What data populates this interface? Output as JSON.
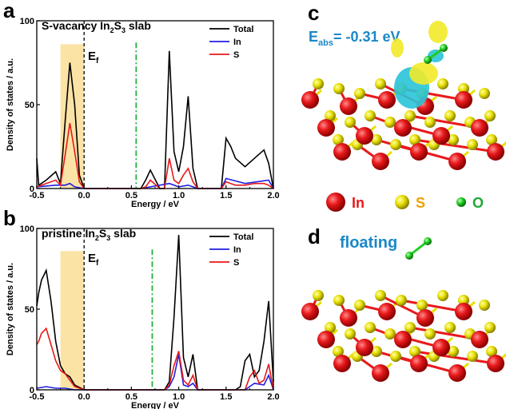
{
  "panels": {
    "a": {
      "letter": "a",
      "title_main": "S-vacancy In",
      "sub1": "2",
      "mid": "S",
      "sub2": "3",
      "tail": " slab",
      "ef_label": "E",
      "ef_sub": "f"
    },
    "b": {
      "letter": "b",
      "title_main": "pristine In",
      "sub1": "2",
      "mid": "S",
      "sub2": "3",
      "tail": " slab",
      "ef_label": "E",
      "ef_sub": "f"
    },
    "c": {
      "letter": "c",
      "eabs_main": "E",
      "eabs_sub": "abs",
      "eabs_value": "= -0.31 eV"
    },
    "d": {
      "letter": "d",
      "label": "floating"
    }
  },
  "species_legend": [
    {
      "label": "In",
      "color": "#e8191b"
    },
    {
      "label": "S",
      "color": "#f0a000"
    },
    {
      "label": "O",
      "color": "#1fa834"
    }
  ],
  "colors": {
    "total": "#000000",
    "in": "#1f1fe0",
    "s": "#e81818",
    "highlight": "#fbe3a6",
    "ef_line": "#000000",
    "dashdot": "#1fb33a",
    "label_blue": "#1a88c8",
    "atom_in": "#e8191b",
    "atom_s": "#e8e000",
    "atom_o": "#22cc22",
    "iso_yellow": "#f2ea2a",
    "iso_cyan": "#29c4d8"
  },
  "chart_data": [
    {
      "type": "line",
      "xlabel": "Energy / eV",
      "ylabel": "Density of states / a.u.",
      "xlim": [
        -0.5,
        2.0
      ],
      "ylim": [
        0,
        100
      ],
      "xticks": [
        "-0.5",
        "0.0",
        "0.5",
        "1.0",
        "1.5",
        "2.0"
      ],
      "yticks": [
        "0",
        "50",
        "100"
      ],
      "highlight_range": [
        -0.25,
        0.0
      ],
      "fermi_level": 0.0,
      "dashdot_x": 0.55,
      "legend_position": "top-right",
      "series": [
        {
          "name": "Total",
          "x": [
            -0.5,
            -0.48,
            -0.4,
            -0.3,
            -0.25,
            -0.2,
            -0.15,
            -0.1,
            -0.05,
            0.0,
            0.6,
            0.65,
            0.7,
            0.8,
            0.85,
            0.9,
            0.95,
            1.0,
            1.05,
            1.1,
            1.15,
            1.2,
            1.4,
            1.45,
            1.5,
            1.55,
            1.6,
            1.7,
            1.8,
            1.9,
            1.95,
            2.0
          ],
          "y": [
            18,
            2,
            5,
            10,
            3,
            40,
            75,
            50,
            8,
            0,
            0,
            5,
            11,
            0,
            0,
            82,
            22,
            10,
            25,
            55,
            12,
            0,
            0,
            0,
            30,
            25,
            18,
            13,
            18,
            23,
            15,
            0
          ]
        },
        {
          "name": "In",
          "x": [
            -0.5,
            -0.3,
            -0.2,
            -0.15,
            -0.1,
            0.0,
            0.6,
            0.9,
            1.0,
            1.1,
            1.15,
            1.2,
            1.45,
            1.5,
            1.7,
            1.95,
            2.0
          ],
          "y": [
            1,
            2,
            2,
            3,
            1,
            0,
            0,
            3,
            1,
            2,
            1,
            0,
            0,
            6,
            3,
            5,
            0
          ]
        },
        {
          "name": "S",
          "x": [
            -0.5,
            -0.3,
            -0.25,
            -0.2,
            -0.15,
            -0.1,
            -0.05,
            0.0,
            0.6,
            0.65,
            0.7,
            0.8,
            0.85,
            0.9,
            0.95,
            1.0,
            1.05,
            1.1,
            1.15,
            1.2,
            1.45,
            1.5,
            1.55,
            1.6,
            1.7,
            1.8,
            1.9,
            1.95,
            2.0
          ],
          "y": [
            1,
            5,
            2,
            20,
            39,
            22,
            4,
            0,
            0,
            1,
            5,
            0,
            0,
            18,
            5,
            3,
            8,
            12,
            4,
            0,
            0,
            4,
            3,
            2,
            2,
            3,
            3,
            2,
            0
          ]
        }
      ]
    },
    {
      "type": "line",
      "xlabel": "Energy / eV",
      "ylabel": "Density of states / a.u.",
      "xlim": [
        -0.5,
        2.0
      ],
      "ylim": [
        0,
        100
      ],
      "xticks": [
        "-0.5",
        "0.0",
        "0.5",
        "1.0",
        "1.5",
        "2.0"
      ],
      "yticks": [
        "0",
        "50",
        "100"
      ],
      "highlight_range": [
        -0.25,
        0.0
      ],
      "fermi_level": 0.0,
      "dashdot_x": 0.72,
      "legend_position": "top-right",
      "series": [
        {
          "name": "Total",
          "x": [
            -0.5,
            -0.48,
            -0.45,
            -0.4,
            -0.35,
            -0.3,
            -0.25,
            -0.2,
            -0.15,
            -0.1,
            0.0,
            0.85,
            0.9,
            0.95,
            1.0,
            1.05,
            1.1,
            1.15,
            1.2,
            1.6,
            1.65,
            1.7,
            1.75,
            1.8,
            1.85,
            1.9,
            1.95,
            2.0
          ],
          "y": [
            52,
            60,
            68,
            74,
            55,
            30,
            15,
            10,
            8,
            3,
            0,
            0,
            5,
            45,
            96,
            20,
            8,
            22,
            0,
            0,
            2,
            18,
            22,
            8,
            12,
            30,
            55,
            5
          ]
        },
        {
          "name": "In",
          "x": [
            -0.5,
            -0.4,
            -0.3,
            -0.2,
            -0.1,
            0.0,
            0.85,
            0.9,
            0.95,
            1.0,
            1.05,
            1.1,
            1.15,
            1.2,
            1.7,
            1.8,
            1.9,
            1.95,
            2.0
          ],
          "y": [
            1,
            2,
            1,
            1,
            0,
            0,
            0,
            2,
            8,
            22,
            3,
            2,
            4,
            0,
            0,
            4,
            3,
            9,
            0
          ],
          "color_note": "blue"
        },
        {
          "name": "S",
          "x": [
            -0.5,
            -0.48,
            -0.45,
            -0.4,
            -0.35,
            -0.3,
            -0.25,
            -0.2,
            -0.15,
            -0.1,
            0.0,
            0.85,
            0.9,
            0.95,
            1.0,
            1.05,
            1.1,
            1.15,
            1.2,
            1.7,
            1.75,
            1.8,
            1.85,
            1.9,
            1.95,
            2.0
          ],
          "y": [
            28,
            30,
            35,
            38,
            28,
            18,
            12,
            10,
            6,
            2,
            0,
            0,
            3,
            15,
            24,
            6,
            3,
            9,
            0,
            0,
            8,
            12,
            4,
            6,
            16,
            0
          ]
        }
      ]
    }
  ]
}
